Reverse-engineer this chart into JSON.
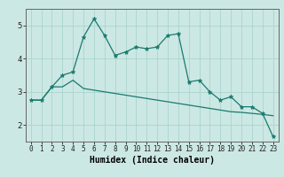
{
  "xlabel": "Humidex (Indice chaleur)",
  "ylabel": "",
  "background_color": "#cce8e4",
  "grid_color": "#aad4ce",
  "line_color": "#1a7a6e",
  "xlim": [
    -0.5,
    23.5
  ],
  "ylim": [
    1.5,
    5.5
  ],
  "yticks": [
    2,
    3,
    4,
    5
  ],
  "xticks": [
    0,
    1,
    2,
    3,
    4,
    5,
    6,
    7,
    8,
    9,
    10,
    11,
    12,
    13,
    14,
    15,
    16,
    17,
    18,
    19,
    20,
    21,
    22,
    23
  ],
  "line1_x": [
    0,
    1,
    2,
    3,
    4,
    5,
    6,
    7,
    8,
    9,
    10,
    11,
    12,
    13,
    14,
    15,
    16,
    17,
    18,
    19,
    20,
    21,
    22,
    23
  ],
  "line1_y": [
    2.75,
    2.75,
    3.15,
    3.5,
    3.6,
    4.65,
    5.2,
    4.7,
    4.1,
    4.2,
    4.35,
    4.3,
    4.35,
    4.7,
    4.75,
    3.3,
    3.35,
    3.0,
    2.75,
    2.85,
    2.55,
    2.55,
    2.35,
    1.65
  ],
  "line2_x": [
    0,
    1,
    2,
    3,
    4,
    5,
    6,
    7,
    8,
    9,
    10,
    11,
    12,
    13,
    14,
    15,
    16,
    17,
    18,
    19,
    20,
    21,
    22,
    23
  ],
  "line2_y": [
    2.75,
    2.75,
    3.15,
    3.15,
    3.35,
    3.1,
    3.05,
    3.0,
    2.95,
    2.9,
    2.85,
    2.8,
    2.75,
    2.7,
    2.65,
    2.6,
    2.55,
    2.5,
    2.45,
    2.4,
    2.38,
    2.35,
    2.32,
    2.28
  ],
  "tick_fontsize": 5.5,
  "ylabel_fontsize": 6.5,
  "xlabel_fontsize": 7.0
}
